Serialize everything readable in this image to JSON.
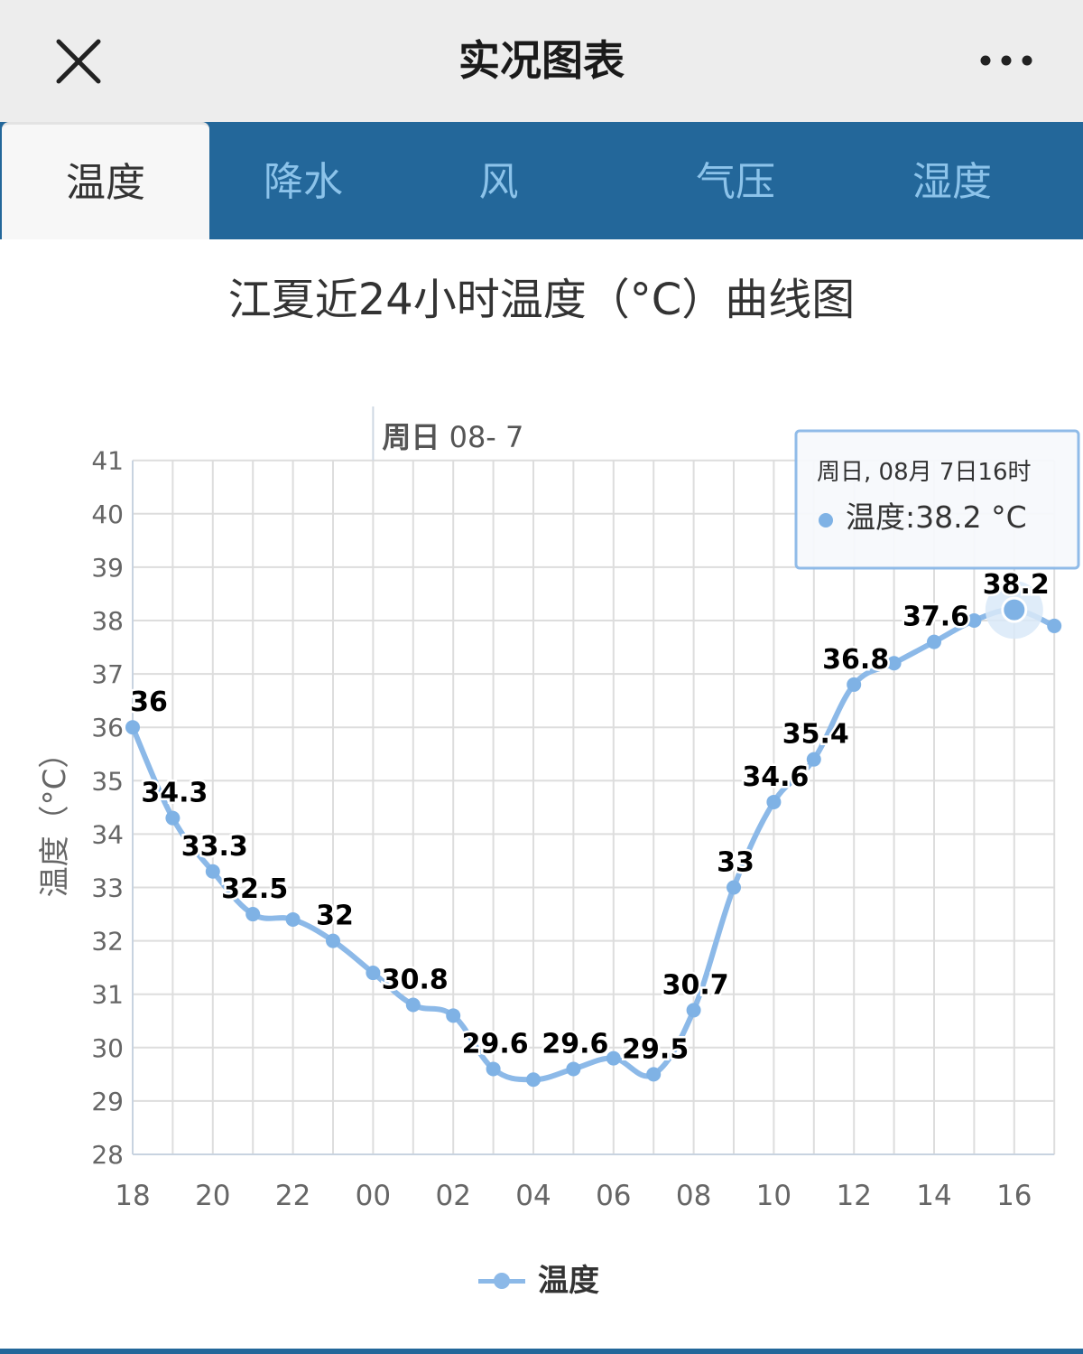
{
  "titlebar": {
    "title": "实况图表",
    "close_icon": "close-icon",
    "more_icon": "more-dots-icon"
  },
  "tabs": [
    {
      "label": "温度",
      "active": true
    },
    {
      "label": "降水",
      "active": false
    },
    {
      "label": "风",
      "active": false
    },
    {
      "label": "气压",
      "active": false
    },
    {
      "label": "湿度",
      "active": false
    }
  ],
  "colors": {
    "tab_bar": "#23679a",
    "tab_inactive_text": "#8cc3ea",
    "series": "#8cb9e8",
    "grid": "#dddddd"
  },
  "chart_data": {
    "type": "line",
    "title": "江夏近24小时温度（°C）曲线图",
    "ylabel": "温度（°C）",
    "xlabel": "",
    "ylim": [
      28,
      41
    ],
    "yticks": [
      "28",
      "29",
      "30",
      "31",
      "32",
      "33",
      "34",
      "35",
      "36",
      "37",
      "38",
      "39",
      "40",
      "41"
    ],
    "xticks": [
      "18",
      "20",
      "22",
      "00",
      "02",
      "04",
      "06",
      "08",
      "10",
      "12",
      "14",
      "16"
    ],
    "day_marker": {
      "label_bold": "周日",
      "label_rest": " 08- 7",
      "at_hour_index": 6
    },
    "grid": true,
    "legend_position": "bottom-center",
    "series": [
      {
        "name": "温度",
        "x": [
          "18时",
          "19时",
          "20时",
          "21时",
          "22时",
          "23时",
          "00时",
          "01时",
          "02时",
          "03时",
          "04时",
          "05时",
          "06时",
          "07时",
          "08时",
          "09时",
          "10时",
          "11时",
          "12时",
          "13时",
          "14时",
          "15时",
          "16时",
          "17时"
        ],
        "values": [
          36.0,
          34.3,
          33.3,
          32.5,
          32.4,
          32.0,
          31.4,
          30.8,
          30.6,
          29.6,
          29.4,
          29.6,
          29.8,
          29.5,
          30.7,
          33.0,
          34.6,
          35.4,
          36.8,
          37.2,
          37.6,
          38.0,
          38.2,
          37.9
        ],
        "labels": [
          "36",
          "34.3",
          "33.3",
          "32.5",
          "",
          "32",
          "",
          "30.8",
          "",
          "29.6",
          "",
          "29.6",
          "",
          "29.5",
          "30.7",
          "33",
          "34.6",
          "35.4",
          "36.8",
          "",
          "37.6",
          "",
          "38.2",
          ""
        ]
      }
    ],
    "tooltip": {
      "header": "周日, 08月 7日16时",
      "body": "温度:38.2 °C",
      "point_index": 22
    }
  }
}
